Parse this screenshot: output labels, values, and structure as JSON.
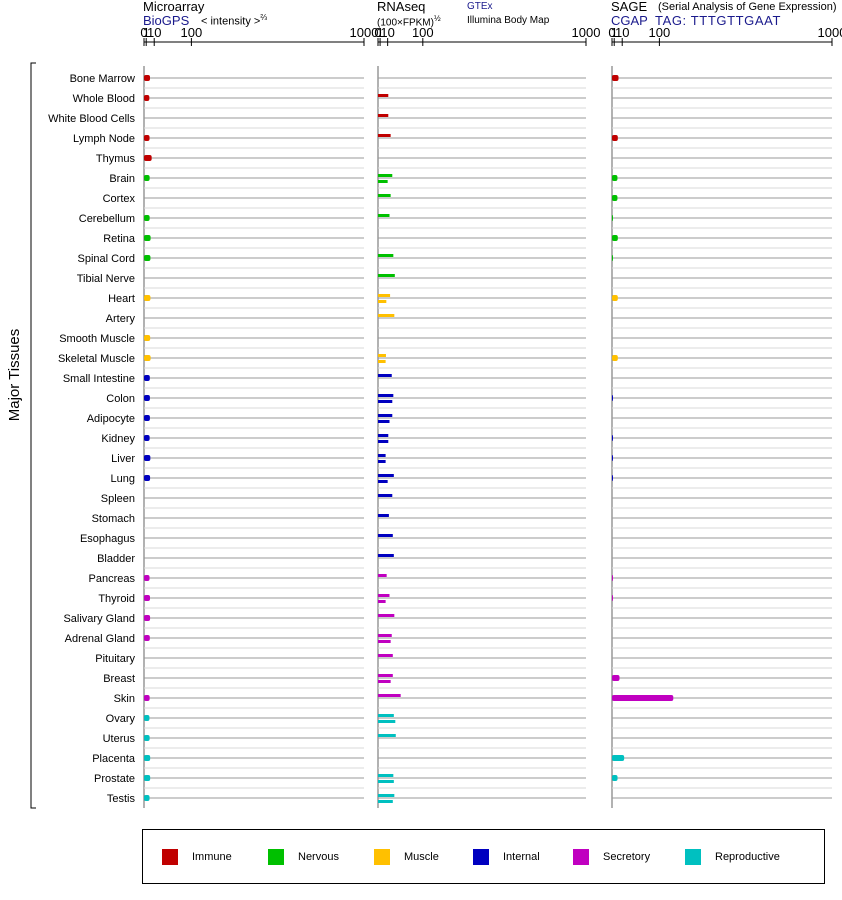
{
  "header": {
    "microarray": {
      "title": "Microarray",
      "source": "BioGPS",
      "scale_label": "< intensity >",
      "scale_exp": "⅔"
    },
    "rnaseq": {
      "title": "RNAseq",
      "unit": "(100×FPKM)",
      "unit_exp": "½",
      "source1": "GTEx",
      "source2": "Illumina Body Map"
    },
    "sage": {
      "title": "SAGE",
      "subtitle": "(Serial Analysis of Gene Expression)",
      "source": "CGAP",
      "tag": "TAG: TTTGTTGAAT"
    }
  },
  "axis_label": "Major Tissues",
  "legend": [
    {
      "label": "Immune",
      "color": "#c00000"
    },
    {
      "label": "Nervous",
      "color": "#00c000"
    },
    {
      "label": "Muscle",
      "color": "#ffc000"
    },
    {
      "label": "Internal",
      "color": "#0000c0"
    },
    {
      "label": "Secretory",
      "color": "#c000c0"
    },
    {
      "label": "Reproductive",
      "color": "#00c0c0"
    }
  ],
  "chart_data": {
    "type": "bar",
    "scale": "power",
    "tick_labels": [
      "0",
      "1",
      "10",
      "100",
      "1000"
    ],
    "tick_values": [
      0,
      1,
      10,
      100,
      1000
    ],
    "xlim": [
      0,
      1000
    ],
    "categories": [
      "Bone Marrow",
      "Whole Blood",
      "White Blood Cells",
      "Lymph Node",
      "Thymus",
      "Brain",
      "Cortex",
      "Cerebellum",
      "Retina",
      "Spinal Cord",
      "Tibial Nerve",
      "Heart",
      "Artery",
      "Smooth Muscle",
      "Skeletal Muscle",
      "Small Intestine",
      "Colon",
      "Adipocyte",
      "Kidney",
      "Liver",
      "Lung",
      "Spleen",
      "Stomach",
      "Esophagus",
      "Bladder",
      "Pancreas",
      "Thyroid",
      "Salivary Gland",
      "Adrenal Gland",
      "Pituitary",
      "Breast",
      "Skin",
      "Ovary",
      "Uterus",
      "Placenta",
      "Prostate",
      "Testis"
    ],
    "groups": [
      "Immune",
      "Immune",
      "Immune",
      "Immune",
      "Immune",
      "Nervous",
      "Nervous",
      "Nervous",
      "Nervous",
      "Nervous",
      "Nervous",
      "Muscle",
      "Muscle",
      "Muscle",
      "Muscle",
      "Internal",
      "Internal",
      "Internal",
      "Internal",
      "Internal",
      "Internal",
      "Internal",
      "Internal",
      "Internal",
      "Internal",
      "Secretory",
      "Secretory",
      "Secretory",
      "Secretory",
      "Secretory",
      "Secretory",
      "Secretory",
      "Reproductive",
      "Reproductive",
      "Reproductive",
      "Reproductive",
      "Reproductive"
    ],
    "panels": [
      {
        "name": "Microarray",
        "values": [
          4.5,
          3.8,
          null,
          4.0,
          6.5,
          4.1,
          null,
          4.1,
          5.2,
          5.0,
          null,
          5.0,
          null,
          4.7,
          5.2,
          4.3,
          4.4,
          4.4,
          4.1,
          4.9,
          4.6,
          null,
          null,
          null,
          null,
          4.0,
          4.5,
          4.6,
          4.3,
          null,
          null,
          4.1,
          3.9,
          4.1,
          4.7,
          4.7,
          4.0
        ]
      },
      {
        "name": "RNAseq GTEx",
        "values": [
          null,
          11,
          11,
          15,
          null,
          18,
          15,
          13,
          null,
          20,
          23,
          14,
          22,
          null,
          7.5,
          17,
          20,
          18,
          11,
          7,
          21,
          18,
          12,
          19,
          21,
          8.5,
          13,
          22,
          17,
          19,
          19,
          36,
          21,
          25,
          null,
          20,
          22
        ]
      },
      {
        "name": "RNAseq Illumina Body Map",
        "values": [
          null,
          null,
          null,
          null,
          null,
          10,
          null,
          null,
          null,
          null,
          null,
          8,
          null,
          null,
          7,
          null,
          18,
          13,
          11,
          7,
          10,
          null,
          null,
          null,
          null,
          null,
          7,
          null,
          15,
          null,
          15,
          null,
          24,
          null,
          null,
          21,
          19
        ]
      },
      {
        "name": "SAGE",
        "values": [
          5.1,
          null,
          null,
          4.3,
          null,
          3.9,
          3.9,
          0.05,
          4.3,
          0.05,
          null,
          4.3,
          null,
          null,
          4.3,
          null,
          0.05,
          null,
          0.05,
          0.05,
          0.05,
          null,
          null,
          null,
          null,
          0.05,
          0.05,
          null,
          null,
          null,
          6.3,
          147,
          null,
          null,
          13,
          4.0,
          null
        ]
      }
    ]
  }
}
